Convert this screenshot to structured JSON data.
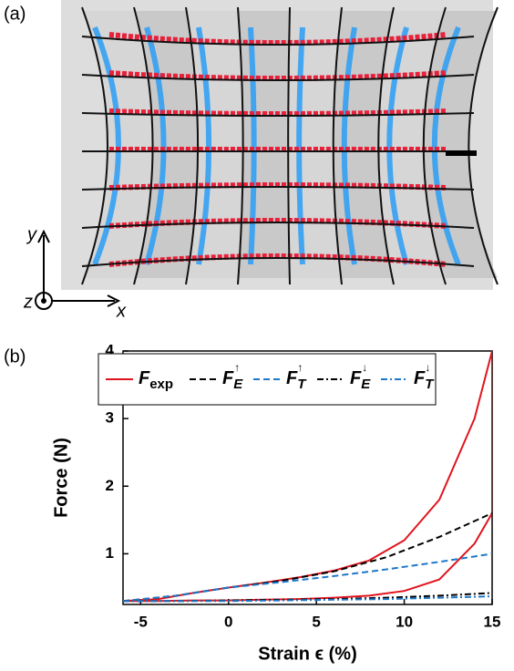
{
  "panel_a": {
    "label": "(a)",
    "axes": {
      "y": "y",
      "z": "z",
      "x": "x"
    }
  },
  "chart_data": {
    "type": "line",
    "panel_label": "(b)",
    "xlabel": "Strain ϵ (%)",
    "ylabel": "Force (N)",
    "xlim": [
      -6,
      15
    ],
    "ylim": [
      0.25,
      4
    ],
    "xticks": [
      -5,
      0,
      5,
      10,
      15
    ],
    "yticks": [
      1,
      2,
      3,
      4
    ],
    "x": [
      -6,
      -3,
      0,
      3,
      6,
      9,
      12,
      15
    ],
    "series": [
      {
        "name": "F",
        "subscript": "exp",
        "color": "#e0141e",
        "linestyle": "-",
        "x": [
          -6,
          -4,
          -2,
          0,
          2,
          4,
          6,
          8,
          10,
          12,
          14,
          15,
          15,
          14,
          12,
          10,
          8,
          6,
          4,
          2,
          0,
          -2,
          -4,
          -6
        ],
        "values": [
          0.3,
          0.33,
          0.42,
          0.5,
          0.57,
          0.65,
          0.75,
          0.9,
          1.2,
          1.8,
          3.0,
          4.0,
          1.6,
          1.15,
          0.62,
          0.45,
          0.38,
          0.35,
          0.33,
          0.32,
          0.31,
          0.31,
          0.3,
          0.3
        ]
      },
      {
        "name": "F",
        "subscript": "E",
        "superscript": "↑",
        "color": "#000000",
        "linestyle": "--",
        "values": [
          0.3,
          0.38,
          0.5,
          0.6,
          0.74,
          0.95,
          1.25,
          1.6
        ]
      },
      {
        "name": "F",
        "subscript": "T",
        "superscript": "↑",
        "color": "#1f78c8",
        "linestyle": "--",
        "values": [
          0.3,
          0.38,
          0.5,
          0.58,
          0.67,
          0.77,
          0.88,
          1.0
        ]
      },
      {
        "name": "F",
        "subscript": "E",
        "superscript": "↓",
        "color": "#000000",
        "linestyle": "-.",
        "values": [
          0.3,
          0.3,
          0.31,
          0.32,
          0.33,
          0.35,
          0.38,
          0.42
        ]
      },
      {
        "name": "F",
        "subscript": "T",
        "superscript": "↓",
        "color": "#1f78c8",
        "linestyle": "-.",
        "values": [
          0.3,
          0.3,
          0.3,
          0.31,
          0.32,
          0.33,
          0.35,
          0.37
        ]
      }
    ]
  }
}
